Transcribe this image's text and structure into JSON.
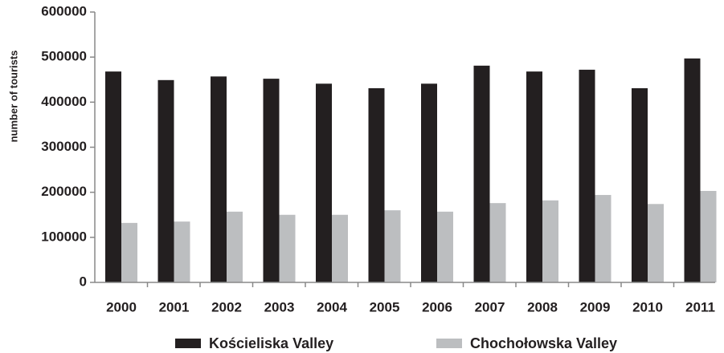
{
  "chart_data": {
    "type": "bar",
    "y_label": "number of tourists",
    "categories": [
      "2000",
      "2001",
      "2002",
      "2003",
      "2004",
      "2005",
      "2006",
      "2007",
      "2008",
      "2009",
      "2010",
      "2011"
    ],
    "series": [
      {
        "name": "Kościeliska Valley",
        "color": "#231f20",
        "values": [
          468000,
          449000,
          457000,
          452000,
          441000,
          431000,
          441000,
          481000,
          468000,
          472000,
          431000,
          497000
        ]
      },
      {
        "name": "Chochołowska Valley",
        "color": "#bcbec0",
        "values": [
          132000,
          135000,
          157000,
          150000,
          150000,
          160000,
          157000,
          176000,
          182000,
          194000,
          174000,
          203000
        ]
      }
    ],
    "ylim": [
      0,
      600000
    ],
    "yticks": [
      0,
      100000,
      200000,
      300000,
      400000,
      500000,
      600000
    ],
    "legend": "bottom"
  }
}
